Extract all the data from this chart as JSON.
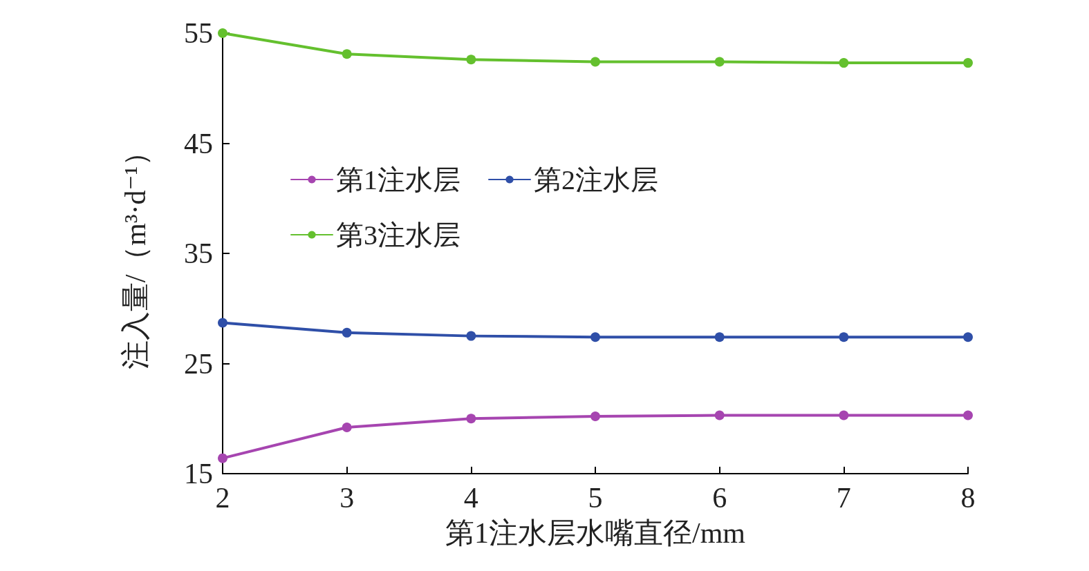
{
  "chart_data": {
    "type": "line",
    "xlabel": "第1注水层水嘴直径/mm",
    "ylabel": "注入量/（m³·d⁻¹）",
    "x": [
      2,
      3,
      4,
      5,
      6,
      7,
      8
    ],
    "xlim": [
      2,
      8
    ],
    "xticks": [
      2,
      3,
      4,
      5,
      6,
      7,
      8
    ],
    "ylim": [
      15,
      55
    ],
    "yticks": [
      15,
      25,
      35,
      45,
      55
    ],
    "grid": false,
    "legend": "top left",
    "marker": "circle",
    "line_style": "solid",
    "series": [
      {
        "name": "第1注水层",
        "color": "#a645b0",
        "values": [
          16.4,
          19.2,
          20.0,
          20.2,
          20.3,
          20.3,
          20.3
        ]
      },
      {
        "name": "第2注水层",
        "color": "#2f4fa8",
        "values": [
          28.7,
          27.8,
          27.5,
          27.4,
          27.4,
          27.4,
          27.4
        ]
      },
      {
        "name": "第3注水层",
        "color": "#64c02e",
        "values": [
          55.0,
          53.1,
          52.6,
          52.4,
          52.4,
          52.3,
          52.3
        ]
      }
    ]
  }
}
